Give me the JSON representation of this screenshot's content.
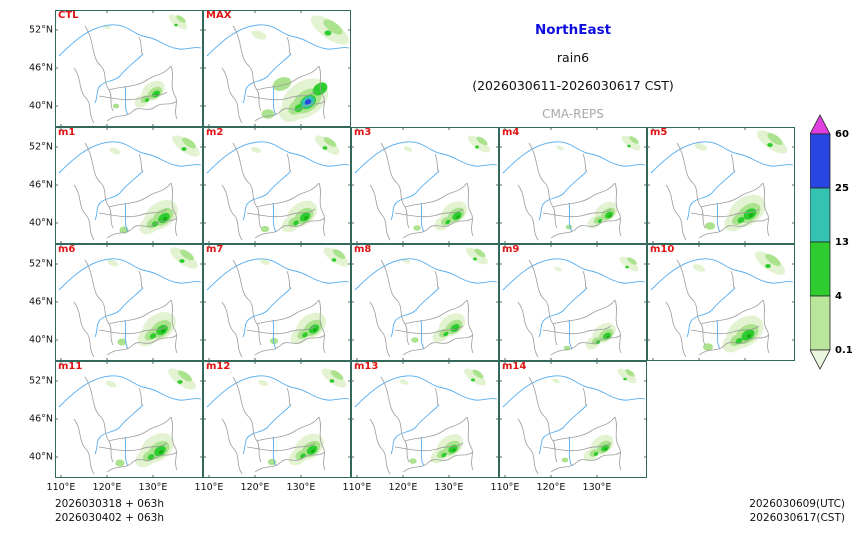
{
  "title": {
    "region": "NorthEast",
    "variable": "rain6",
    "period": "(2026030611-2026030617 CST)",
    "model": "CMA-REPS",
    "region_color": "#0d0de0",
    "model_color": "#a8a8a8"
  },
  "panels": [
    {
      "label": "CTL",
      "row": 0,
      "col": 0
    },
    {
      "label": "MAX",
      "row": 0,
      "col": 1
    },
    {
      "label": "m1",
      "row": 1,
      "col": 0
    },
    {
      "label": "m2",
      "row": 1,
      "col": 1
    },
    {
      "label": "m3",
      "row": 1,
      "col": 2
    },
    {
      "label": "m4",
      "row": 1,
      "col": 3
    },
    {
      "label": "m5",
      "row": 1,
      "col": 4
    },
    {
      "label": "m6",
      "row": 2,
      "col": 0
    },
    {
      "label": "m7",
      "row": 2,
      "col": 1
    },
    {
      "label": "m8",
      "row": 2,
      "col": 2
    },
    {
      "label": "m9",
      "row": 2,
      "col": 3
    },
    {
      "label": "m10",
      "row": 2,
      "col": 4
    },
    {
      "label": "m11",
      "row": 3,
      "col": 0
    },
    {
      "label": "m12",
      "row": 3,
      "col": 1
    },
    {
      "label": "m13",
      "row": 3,
      "col": 2
    },
    {
      "label": "m14",
      "row": 3,
      "col": 3
    }
  ],
  "axes": {
    "y_ticks": [
      "52°N",
      "46°N",
      "40°N"
    ],
    "x_ticks": [
      "110°E",
      "120°E",
      "130°E"
    ]
  },
  "colorbar": {
    "values": [
      "60",
      "25",
      "13",
      "4",
      "0.1"
    ],
    "colors_top_to_bottom": [
      "#df3fdf",
      "#2847e0",
      "#35c3b1",
      "#2fcc30",
      "#b9e69a",
      "#eaf6dd"
    ]
  },
  "footer": {
    "left_line1": "2026030318 + 063h",
    "left_line2": "2026030402 + 063h",
    "right_line1": "2026030609(UTC)",
    "right_line2": "2026030617(CST)"
  },
  "chart_data": {
    "type": "heatmap",
    "title": "NorthEast rain6 (2026030611-2026030617 CST)",
    "model": "CMA-REPS",
    "panel_labels": [
      "CTL",
      "MAX",
      "m1",
      "m2",
      "m3",
      "m4",
      "m5",
      "m6",
      "m7",
      "m8",
      "m9",
      "m10",
      "m11",
      "m12",
      "m13",
      "m14"
    ],
    "grid": "4 rows: [CTL,MAX] / [m1-m5] / [m6-m10] / [m11-m14]",
    "x_tick_labels": [
      "110°E",
      "120°E",
      "130°E"
    ],
    "y_tick_labels": [
      "52°N",
      "46°N",
      "40°N"
    ],
    "xlim": [
      "~109°E",
      "~141°E"
    ],
    "ylim": [
      "~37°N",
      "~55°N"
    ],
    "colorbar_levels": [
      0.1,
      4,
      13,
      25,
      60
    ],
    "colorbar_colors_top_to_bottom": [
      "#df3fdf",
      "#2847e0",
      "#35c3b1",
      "#2fcc30",
      "#b9e69a",
      "#eaf6dd"
    ],
    "legend_position": "right",
    "init_times": [
      "2026030318 + 063h",
      "2026030402 + 063h"
    ],
    "valid_times": [
      "2026030609(UTC)",
      "2026030617(CST)"
    ]
  }
}
